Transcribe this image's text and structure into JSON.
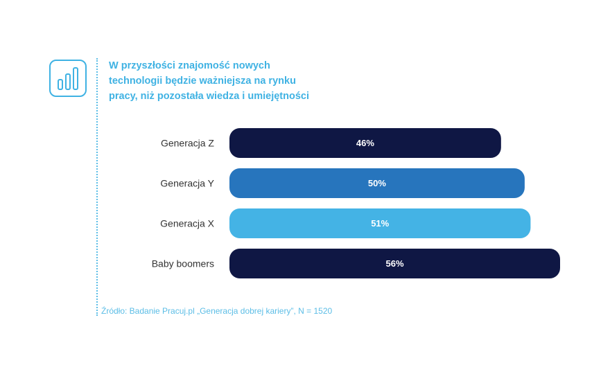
{
  "title_lines": [
    "W przyszłości znajomość nowych",
    "technologii będzie ważniejsza na rynku",
    "pracy, niż pozostała wiedza i umiejętności"
  ],
  "icon": "bar-chart-icon",
  "source": "Źródło: Badanie Pracuj.pl „Generacja dobrej kariery”, N = 1520",
  "colors": {
    "accent": "#3fb2e3",
    "label_text": "#333333",
    "value_text": "#ffffff"
  },
  "chart_data": {
    "type": "bar",
    "orientation": "horizontal",
    "categories": [
      "Generacja Z",
      "Generacja Y",
      "Generacja X",
      "Baby boomers"
    ],
    "values": [
      46,
      50,
      51,
      56
    ],
    "value_labels": [
      "46%",
      "50%",
      "51%",
      "56%"
    ],
    "bar_colors": [
      "#0f1744",
      "#2775bd",
      "#44b3e5",
      "#0f1744"
    ],
    "unit": "%",
    "title": "W przyszłości znajomość nowych technologii będzie ważniejsza na rynku pracy, niż pozostała wiedza i umiejętności",
    "xlabel": "",
    "ylabel": "",
    "grid": false,
    "legend": "none"
  }
}
